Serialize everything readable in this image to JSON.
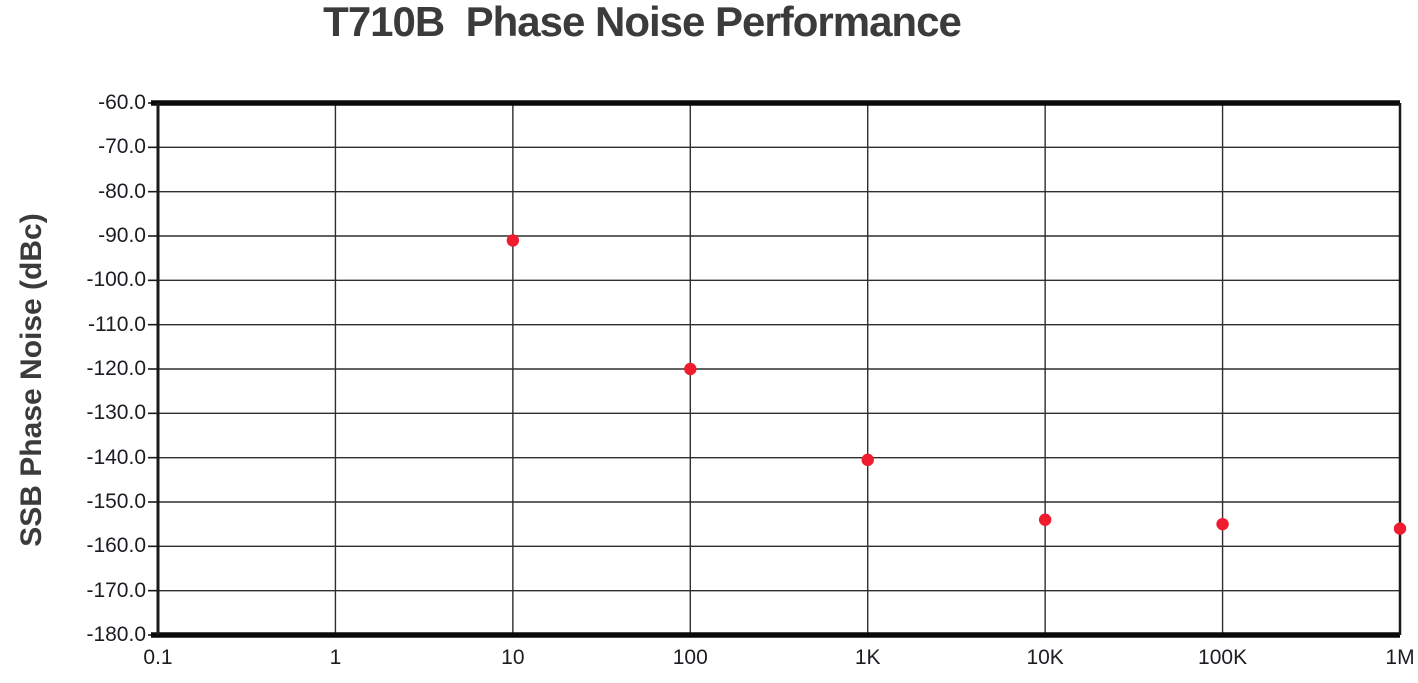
{
  "title": "T710B  Phase Noise Performance",
  "colors": {
    "point": "#ee1c2e",
    "grid": "#2e2e2e",
    "axis": "#1a1a1a",
    "border": "#0a0a0a",
    "title_text": "#3b3b3d",
    "tick_text": "#1c1c22",
    "background": "#ffffff"
  },
  "chart_data": {
    "type": "scatter",
    "title": "T710B  Phase Noise Performance",
    "xlabel": "",
    "ylabel": "SSB Phase Noise (dBc)",
    "x_scale": "log",
    "xlim": [
      0.1,
      1000000
    ],
    "ylim": [
      -180,
      -60
    ],
    "grid": true,
    "legend": false,
    "x_tick_values": [
      0.1,
      1,
      10,
      100,
      1000,
      10000,
      100000,
      1000000
    ],
    "x_tick_labels": [
      "0.1",
      "1",
      "10",
      "100",
      "1K",
      "10K",
      "100K",
      "1M"
    ],
    "y_tick_values": [
      -60,
      -70,
      -80,
      -90,
      -100,
      -110,
      -120,
      -130,
      -140,
      -150,
      -160,
      -170,
      -180
    ],
    "y_tick_labels": [
      "-60.0",
      "-70.0",
      "-80.0",
      "-90.0",
      "-100.0",
      "-110.0",
      "-120.0",
      "-130.0",
      "-140.0",
      "-150.0",
      "-160.0",
      "-170.0",
      "-180.0"
    ],
    "series": [
      {
        "name": "ssb-phase-noise",
        "color": "#ee1c2e",
        "marker": "circle",
        "x": [
          10,
          100,
          1000,
          10000,
          100000,
          1000000
        ],
        "y": [
          -91,
          -120,
          -140.5,
          -154,
          -155,
          -156
        ]
      }
    ]
  }
}
